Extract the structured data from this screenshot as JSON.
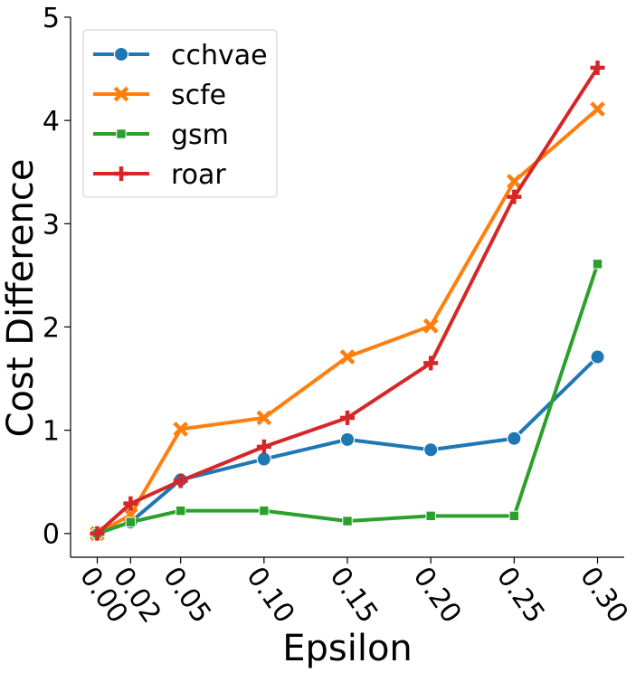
{
  "chart_data": {
    "type": "line",
    "x": [
      0.0,
      0.02,
      0.05,
      0.1,
      0.15,
      0.2,
      0.25,
      0.3
    ],
    "x_tick_labels": [
      "0.00",
      "0.02",
      "0.05",
      "0.10",
      "0.15",
      "0.20",
      "0.25",
      "0.30"
    ],
    "y_ticks": [
      0,
      1,
      2,
      3,
      4,
      5
    ],
    "y_tick_labels": [
      "0",
      "1",
      "2",
      "3",
      "4",
      "5"
    ],
    "xlabel": "Epsilon",
    "ylabel": "Cost Difference",
    "xlim": [
      -0.016,
      0.316
    ],
    "ylim": [
      -0.23,
      5.0
    ],
    "grid": false,
    "legend_position": "top-left",
    "series": [
      {
        "name": "cchvae",
        "color": "#1f77b4",
        "marker": "circle",
        "values": [
          0.0,
          0.11,
          0.52,
          0.72,
          0.91,
          0.81,
          0.92,
          1.71
        ]
      },
      {
        "name": "scfe",
        "color": "#ff7f0e",
        "marker": "x",
        "values": [
          0.0,
          0.18,
          1.01,
          1.12,
          1.71,
          2.01,
          3.41,
          4.11
        ]
      },
      {
        "name": "gsm",
        "color": "#2ca02c",
        "marker": "square",
        "values": [
          0.0,
          0.11,
          0.22,
          0.22,
          0.12,
          0.17,
          0.17,
          2.61
        ]
      },
      {
        "name": "roar",
        "color": "#d62728",
        "marker": "plus",
        "values": [
          0.0,
          0.29,
          0.51,
          0.84,
          1.12,
          1.65,
          3.26,
          4.51
        ]
      }
    ]
  }
}
